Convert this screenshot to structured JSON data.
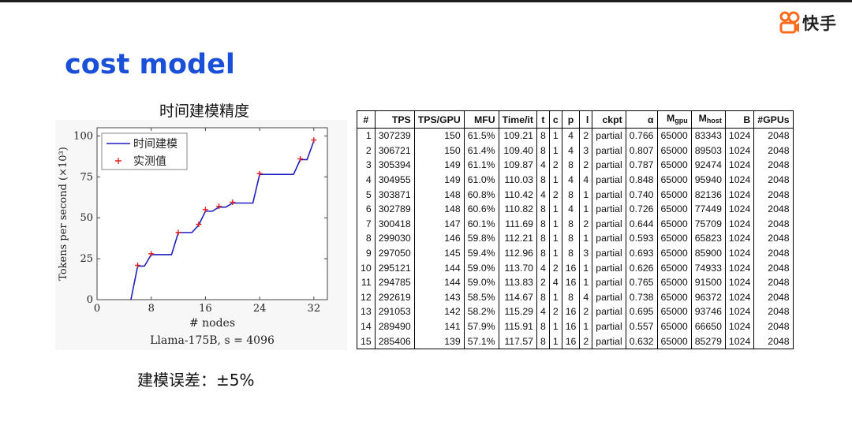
{
  "brand": {
    "name": "快手"
  },
  "slide": {
    "title": "cost model",
    "chart_heading": "时间建模精度",
    "note": "建模误差：±5%"
  },
  "chart_data": {
    "type": "line",
    "title": "Llama-175B, s = 4096",
    "xlabel": "# nodes",
    "ylabel": "Tokens per second (×10³)",
    "xlim": [
      0,
      34
    ],
    "ylim": [
      0,
      105
    ],
    "xticks": [
      0,
      8,
      16,
      24,
      32
    ],
    "yticks": [
      0,
      25,
      50,
      75,
      100
    ],
    "legend_position": "top-left",
    "grid": false,
    "series": [
      {
        "name": "时间建模",
        "kind": "line",
        "color": "#1f1fbf",
        "x": [
          5,
          6,
          7,
          8,
          9,
          10,
          11,
          12,
          13,
          14,
          15,
          16,
          17,
          18,
          19,
          20,
          21,
          22,
          23,
          24,
          25,
          26,
          27,
          28,
          29,
          30,
          31,
          32
        ],
        "y": [
          0,
          20.5,
          20.5,
          27.5,
          27.5,
          27.5,
          27.5,
          41,
          41,
          41,
          45.5,
          54,
          54,
          56.5,
          56.5,
          59,
          59,
          59,
          59,
          76.5,
          76.5,
          76.5,
          76.5,
          76.5,
          76.5,
          85.5,
          85.5,
          97
        ]
      },
      {
        "name": "实测值",
        "kind": "scatter",
        "color": "#e02020",
        "x": [
          6,
          8,
          12,
          15,
          16,
          18,
          20,
          24,
          30,
          32
        ],
        "y": [
          21,
          28,
          41,
          46,
          55,
          57,
          59.5,
          77,
          86,
          97.5
        ]
      }
    ]
  },
  "table": {
    "columns": [
      "#",
      "TPS",
      "TPS/GPU",
      "MFU",
      "Time/it",
      "t",
      "c",
      "p",
      "l",
      "ckpt",
      "α",
      "M_gpu",
      "M_host",
      "B",
      "#GPUs"
    ],
    "rows": [
      [
        "1",
        "307239",
        "150",
        "61.5%",
        "109.21",
        "8",
        "1",
        "4",
        "2",
        "partial",
        "0.766",
        "65000",
        "83343",
        "1024",
        "2048"
      ],
      [
        "2",
        "306721",
        "150",
        "61.4%",
        "109.40",
        "8",
        "1",
        "4",
        "3",
        "partial",
        "0.807",
        "65000",
        "89503",
        "1024",
        "2048"
      ],
      [
        "3",
        "305394",
        "149",
        "61.1%",
        "109.87",
        "4",
        "2",
        "8",
        "2",
        "partial",
        "0.787",
        "65000",
        "92474",
        "1024",
        "2048"
      ],
      [
        "4",
        "304955",
        "149",
        "61.0%",
        "110.03",
        "8",
        "1",
        "4",
        "4",
        "partial",
        "0.848",
        "65000",
        "95940",
        "1024",
        "2048"
      ],
      [
        "5",
        "303871",
        "148",
        "60.8%",
        "110.42",
        "4",
        "2",
        "8",
        "1",
        "partial",
        "0.740",
        "65000",
        "82136",
        "1024",
        "2048"
      ],
      [
        "6",
        "302789",
        "148",
        "60.6%",
        "110.82",
        "8",
        "1",
        "4",
        "1",
        "partial",
        "0.726",
        "65000",
        "77449",
        "1024",
        "2048"
      ],
      [
        "7",
        "300418",
        "147",
        "60.1%",
        "111.69",
        "8",
        "1",
        "8",
        "2",
        "partial",
        "0.644",
        "65000",
        "75709",
        "1024",
        "2048"
      ],
      [
        "8",
        "299030",
        "146",
        "59.8%",
        "112.21",
        "8",
        "1",
        "8",
        "1",
        "partial",
        "0.593",
        "65000",
        "65823",
        "1024",
        "2048"
      ],
      [
        "9",
        "297050",
        "145",
        "59.4%",
        "112.96",
        "8",
        "1",
        "8",
        "3",
        "partial",
        "0.693",
        "65000",
        "85900",
        "1024",
        "2048"
      ],
      [
        "10",
        "295121",
        "144",
        "59.0%",
        "113.70",
        "4",
        "2",
        "16",
        "1",
        "partial",
        "0.626",
        "65000",
        "74933",
        "1024",
        "2048"
      ],
      [
        "11",
        "294785",
        "144",
        "59.0%",
        "113.83",
        "2",
        "4",
        "16",
        "1",
        "partial",
        "0.765",
        "65000",
        "91500",
        "1024",
        "2048"
      ],
      [
        "12",
        "292619",
        "143",
        "58.5%",
        "114.67",
        "8",
        "1",
        "8",
        "4",
        "partial",
        "0.738",
        "65000",
        "96372",
        "1024",
        "2048"
      ],
      [
        "13",
        "291053",
        "142",
        "58.2%",
        "115.29",
        "4",
        "2",
        "16",
        "2",
        "partial",
        "0.695",
        "65000",
        "93746",
        "1024",
        "2048"
      ],
      [
        "14",
        "289490",
        "141",
        "57.9%",
        "115.91",
        "8",
        "1",
        "16",
        "1",
        "partial",
        "0.557",
        "65000",
        "66650",
        "1024",
        "2048"
      ],
      [
        "15",
        "285406",
        "139",
        "57.1%",
        "117.57",
        "8",
        "1",
        "16",
        "2",
        "partial",
        "0.632",
        "65000",
        "85279",
        "1024",
        "2048"
      ]
    ]
  },
  "colors": {
    "title": "#1a4fd8",
    "brand_orange": "#ff6a1a"
  }
}
